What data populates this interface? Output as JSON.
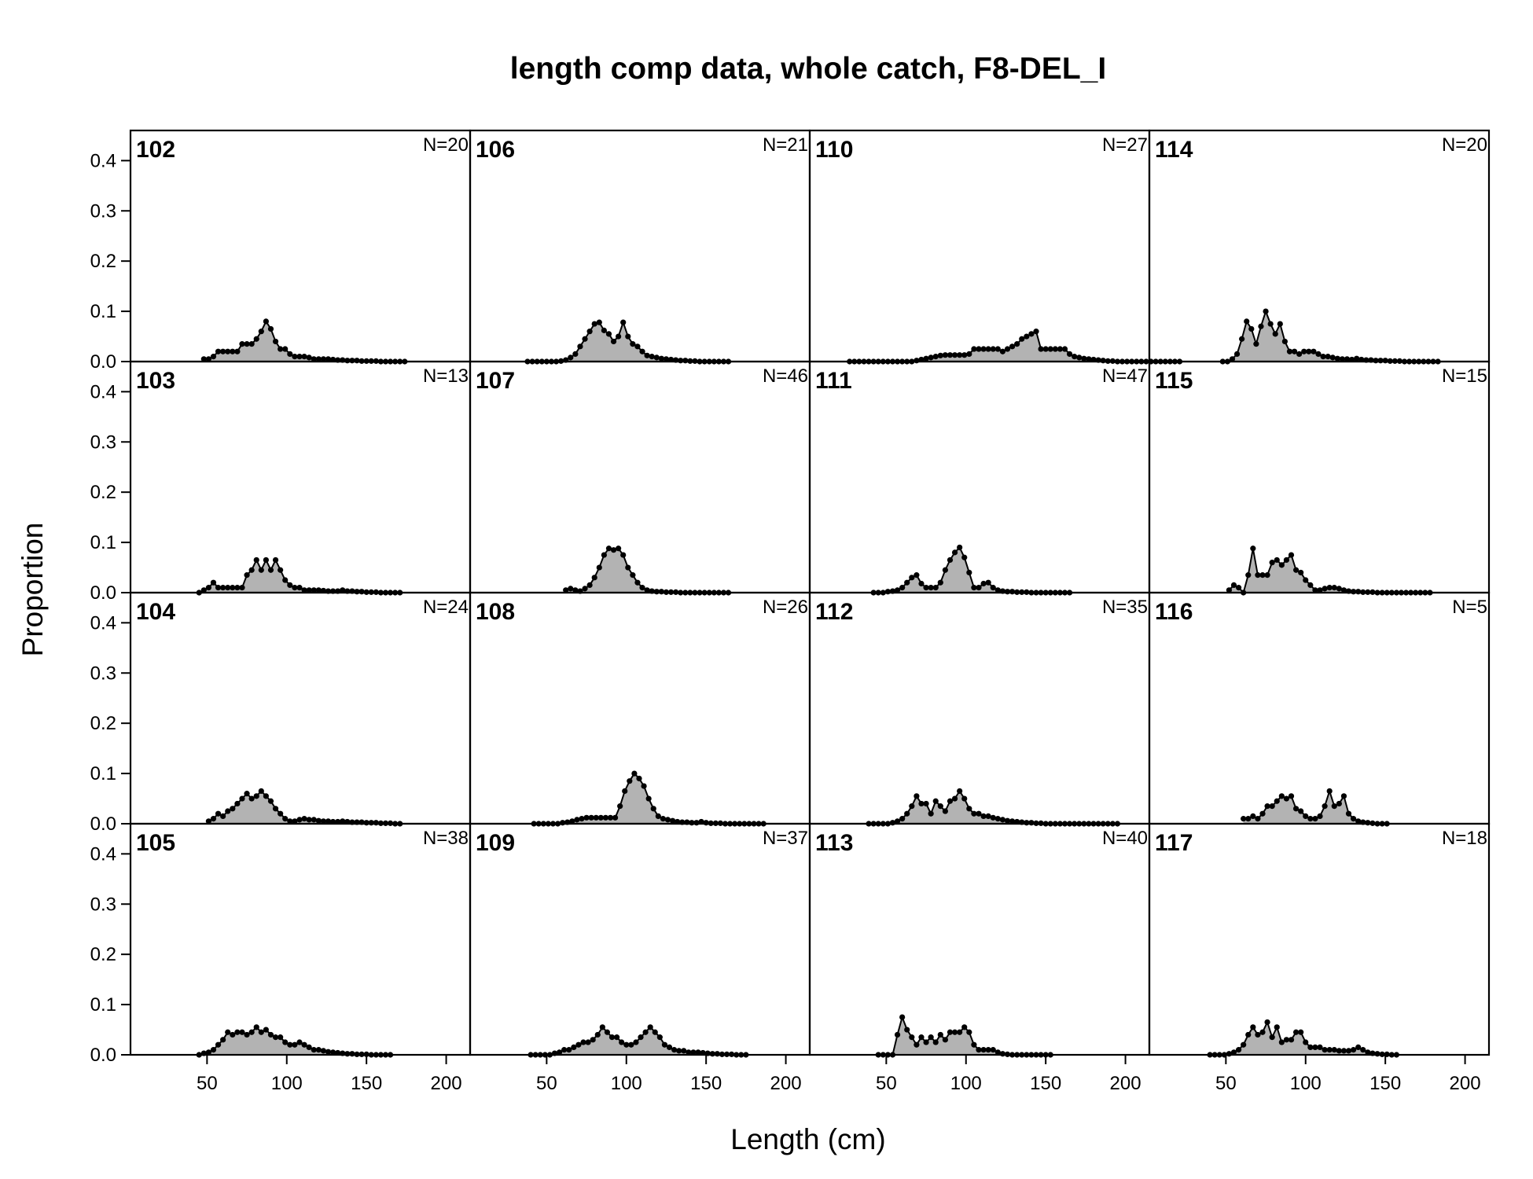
{
  "chart_data": {
    "type": "area",
    "title": "length comp data, whole catch, F8-DEL_I",
    "xlabel": "Length (cm)",
    "ylabel": "Proportion",
    "xlim": [
      2,
      215
    ],
    "ylim": [
      0,
      0.46
    ],
    "xticks": [
      50,
      100,
      150,
      200
    ],
    "yticks": [
      0.0,
      0.1,
      0.2,
      0.3,
      0.4
    ],
    "ytick_labels": [
      "0.0",
      "0.1",
      "0.2",
      "0.3",
      "0.4"
    ],
    "layout": "4 columns x 4 rows, filled by column",
    "fill_color": "#b3b3b3",
    "line_color": "#000000",
    "panels": [
      {
        "label": "102",
        "n_label": "N=20",
        "x_start": 48,
        "x_step": 3,
        "values": [
          0.005,
          0.005,
          0.01,
          0.02,
          0.02,
          0.02,
          0.02,
          0.02,
          0.035,
          0.035,
          0.035,
          0.045,
          0.06,
          0.08,
          0.065,
          0.04,
          0.025,
          0.025,
          0.015,
          0.01,
          0.01,
          0.01,
          0.008,
          0.005,
          0.005,
          0.005,
          0.005,
          0.004,
          0.003,
          0.003,
          0.002,
          0.002,
          0.002,
          0.001,
          0.001,
          0.001,
          0.001,
          0.0,
          0.0,
          0.0,
          0.0,
          0.0,
          0.0
        ]
      },
      {
        "label": "103",
        "n_label": "N=13",
        "x_start": 45,
        "x_step": 3,
        "values": [
          0.0,
          0.005,
          0.01,
          0.02,
          0.01,
          0.01,
          0.01,
          0.01,
          0.01,
          0.01,
          0.035,
          0.045,
          0.065,
          0.045,
          0.065,
          0.045,
          0.065,
          0.045,
          0.025,
          0.015,
          0.01,
          0.01,
          0.005,
          0.005,
          0.005,
          0.005,
          0.004,
          0.003,
          0.003,
          0.003,
          0.005,
          0.003,
          0.003,
          0.002,
          0.002,
          0.001,
          0.001,
          0.001,
          0.0,
          0.0,
          0.0,
          0.0,
          0.0
        ]
      },
      {
        "label": "104",
        "n_label": "N=24",
        "x_start": 51,
        "x_step": 3,
        "values": [
          0.005,
          0.01,
          0.02,
          0.015,
          0.025,
          0.03,
          0.04,
          0.05,
          0.06,
          0.05,
          0.055,
          0.065,
          0.055,
          0.045,
          0.03,
          0.02,
          0.01,
          0.005,
          0.005,
          0.008,
          0.01,
          0.008,
          0.008,
          0.006,
          0.005,
          0.005,
          0.004,
          0.004,
          0.005,
          0.004,
          0.003,
          0.003,
          0.003,
          0.002,
          0.002,
          0.002,
          0.001,
          0.001,
          0.001,
          0.0,
          0.0
        ]
      },
      {
        "label": "105",
        "n_label": "N=38",
        "x_start": 45,
        "x_step": 3,
        "values": [
          0.0,
          0.003,
          0.005,
          0.01,
          0.02,
          0.03,
          0.045,
          0.04,
          0.045,
          0.045,
          0.04,
          0.045,
          0.055,
          0.045,
          0.05,
          0.04,
          0.035,
          0.035,
          0.025,
          0.02,
          0.02,
          0.025,
          0.02,
          0.015,
          0.01,
          0.01,
          0.008,
          0.006,
          0.005,
          0.004,
          0.003,
          0.002,
          0.002,
          0.001,
          0.001,
          0.001,
          0.0,
          0.0,
          0.0,
          0.0,
          0.0
        ]
      },
      {
        "label": "106",
        "n_label": "N=21",
        "x_start": 38,
        "x_step": 3,
        "values": [
          0.0,
          0.0,
          0.0,
          0.0,
          0.0,
          0.0,
          0.0,
          0.001,
          0.003,
          0.008,
          0.015,
          0.03,
          0.045,
          0.06,
          0.075,
          0.078,
          0.062,
          0.055,
          0.04,
          0.05,
          0.078,
          0.05,
          0.035,
          0.03,
          0.02,
          0.012,
          0.01,
          0.008,
          0.006,
          0.005,
          0.004,
          0.003,
          0.002,
          0.002,
          0.001,
          0.001,
          0.0,
          0.0,
          0.0,
          0.0,
          0.0,
          0.0,
          0.0
        ]
      },
      {
        "label": "107",
        "n_label": "N=46",
        "x_start": 62,
        "x_step": 3,
        "values": [
          0.005,
          0.008,
          0.005,
          0.003,
          0.008,
          0.015,
          0.03,
          0.05,
          0.075,
          0.088,
          0.085,
          0.088,
          0.075,
          0.05,
          0.035,
          0.02,
          0.01,
          0.005,
          0.003,
          0.002,
          0.002,
          0.001,
          0.001,
          0.001,
          0.0,
          0.0,
          0.0,
          0.0,
          0.0,
          0.0,
          0.0,
          0.0,
          0.0,
          0.0,
          0.0
        ]
      },
      {
        "label": "108",
        "n_label": "N=26",
        "x_start": 42,
        "x_step": 3,
        "values": [
          0.0,
          0.0,
          0.0,
          0.0,
          0.0,
          0.0,
          0.002,
          0.003,
          0.005,
          0.008,
          0.01,
          0.012,
          0.012,
          0.012,
          0.012,
          0.012,
          0.012,
          0.012,
          0.035,
          0.065,
          0.085,
          0.1,
          0.09,
          0.075,
          0.05,
          0.03,
          0.015,
          0.01,
          0.008,
          0.006,
          0.004,
          0.003,
          0.003,
          0.002,
          0.002,
          0.004,
          0.002,
          0.001,
          0.001,
          0.001,
          0.0,
          0.0,
          0.0,
          0.0,
          0.0,
          0.0,
          0.0,
          0.0,
          0.0
        ]
      },
      {
        "label": "109",
        "n_label": "N=37",
        "x_start": 40,
        "x_step": 3,
        "values": [
          0.0,
          0.0,
          0.0,
          0.0,
          0.0,
          0.003,
          0.005,
          0.01,
          0.01,
          0.015,
          0.02,
          0.025,
          0.025,
          0.03,
          0.04,
          0.055,
          0.045,
          0.035,
          0.035,
          0.025,
          0.02,
          0.02,
          0.025,
          0.035,
          0.045,
          0.055,
          0.045,
          0.035,
          0.02,
          0.015,
          0.01,
          0.008,
          0.008,
          0.005,
          0.005,
          0.005,
          0.004,
          0.003,
          0.002,
          0.002,
          0.001,
          0.001,
          0.001,
          0.0,
          0.0,
          0.0
        ]
      },
      {
        "label": "110",
        "n_label": "N=27",
        "x_start": 27,
        "x_step": 3,
        "values": [
          0.0,
          0.0,
          0.0,
          0.0,
          0.0,
          0.0,
          0.0,
          0.0,
          0.0,
          0.0,
          0.0,
          0.0,
          0.0,
          0.0,
          0.002,
          0.004,
          0.006,
          0.008,
          0.01,
          0.012,
          0.013,
          0.013,
          0.013,
          0.013,
          0.013,
          0.015,
          0.025,
          0.025,
          0.025,
          0.025,
          0.025,
          0.025,
          0.02,
          0.025,
          0.03,
          0.035,
          0.045,
          0.05,
          0.055,
          0.06,
          0.025,
          0.025,
          0.025,
          0.025,
          0.025,
          0.025,
          0.015,
          0.01,
          0.008,
          0.006,
          0.005,
          0.004,
          0.003,
          0.002,
          0.001,
          0.001,
          0.0,
          0.0,
          0.0,
          0.0,
          0.0,
          0.0,
          0.0,
          0.0,
          0.0,
          0.0,
          0.0,
          0.0,
          0.0,
          0.0
        ]
      },
      {
        "label": "111",
        "n_label": "N=47",
        "x_start": 42,
        "x_step": 3,
        "values": [
          0.0,
          0.0,
          0.0,
          0.002,
          0.003,
          0.005,
          0.01,
          0.02,
          0.03,
          0.035,
          0.018,
          0.01,
          0.01,
          0.01,
          0.02,
          0.045,
          0.065,
          0.08,
          0.09,
          0.07,
          0.04,
          0.01,
          0.01,
          0.018,
          0.02,
          0.01,
          0.005,
          0.003,
          0.002,
          0.002,
          0.001,
          0.001,
          0.001,
          0.0,
          0.0,
          0.0,
          0.0,
          0.0,
          0.0,
          0.0,
          0.0,
          0.0
        ]
      },
      {
        "label": "112",
        "n_label": "N=35",
        "x_start": 39,
        "x_step": 3,
        "values": [
          0.0,
          0.0,
          0.0,
          0.0,
          0.0,
          0.002,
          0.005,
          0.01,
          0.02,
          0.035,
          0.055,
          0.04,
          0.04,
          0.02,
          0.045,
          0.035,
          0.025,
          0.045,
          0.05,
          0.065,
          0.05,
          0.03,
          0.02,
          0.02,
          0.015,
          0.015,
          0.012,
          0.01,
          0.008,
          0.006,
          0.005,
          0.004,
          0.003,
          0.002,
          0.002,
          0.001,
          0.001,
          0.0,
          0.0,
          0.0,
          0.0,
          0.0,
          0.0,
          0.0,
          0.0,
          0.0,
          0.0,
          0.0,
          0.0,
          0.0,
          0.0,
          0.0,
          0.0
        ]
      },
      {
        "label": "113",
        "n_label": "N=40",
        "x_start": 45,
        "x_step": 3,
        "values": [
          0.0,
          0.0,
          0.0,
          0.0,
          0.04,
          0.075,
          0.05,
          0.035,
          0.02,
          0.035,
          0.025,
          0.035,
          0.025,
          0.04,
          0.03,
          0.045,
          0.045,
          0.045,
          0.055,
          0.045,
          0.02,
          0.01,
          0.01,
          0.01,
          0.01,
          0.005,
          0.002,
          0.001,
          0.0,
          0.0,
          0.0,
          0.0,
          0.0,
          0.0,
          0.0,
          0.0,
          0.0
        ]
      },
      {
        "label": "114",
        "n_label": "N=20",
        "x_start": 48,
        "x_step": 3,
        "values": [
          0.0,
          0.0,
          0.005,
          0.015,
          0.045,
          0.08,
          0.065,
          0.035,
          0.07,
          0.1,
          0.075,
          0.055,
          0.075,
          0.04,
          0.02,
          0.02,
          0.015,
          0.02,
          0.02,
          0.02,
          0.015,
          0.01,
          0.01,
          0.008,
          0.006,
          0.005,
          0.005,
          0.004,
          0.006,
          0.004,
          0.003,
          0.003,
          0.002,
          0.002,
          0.002,
          0.001,
          0.001,
          0.001,
          0.0,
          0.0,
          0.0,
          0.0,
          0.0,
          0.0,
          0.0,
          0.0
        ]
      },
      {
        "label": "115",
        "n_label": "N=15",
        "x_start": 52,
        "x_step": 3,
        "values": [
          0.005,
          0.015,
          0.01,
          0.0,
          0.035,
          0.088,
          0.035,
          0.035,
          0.035,
          0.06,
          0.065,
          0.055,
          0.065,
          0.075,
          0.045,
          0.04,
          0.025,
          0.015,
          0.005,
          0.005,
          0.008,
          0.01,
          0.01,
          0.008,
          0.005,
          0.003,
          0.002,
          0.002,
          0.001,
          0.001,
          0.001,
          0.0,
          0.0,
          0.0,
          0.0,
          0.0,
          0.0,
          0.0,
          0.0,
          0.0,
          0.0,
          0.0,
          0.0
        ]
      },
      {
        "label": "116",
        "n_label": "N=5",
        "x_start": 61,
        "x_step": 3,
        "values": [
          0.01,
          0.01,
          0.015,
          0.01,
          0.02,
          0.035,
          0.035,
          0.045,
          0.055,
          0.05,
          0.055,
          0.03,
          0.025,
          0.015,
          0.01,
          0.01,
          0.015,
          0.035,
          0.065,
          0.035,
          0.04,
          0.055,
          0.02,
          0.01,
          0.005,
          0.003,
          0.002,
          0.001,
          0.0,
          0.0,
          0.0
        ]
      },
      {
        "label": "117",
        "n_label": "N=18",
        "x_start": 40,
        "x_step": 3,
        "values": [
          0.0,
          0.0,
          0.0,
          0.0,
          0.002,
          0.005,
          0.01,
          0.02,
          0.04,
          0.055,
          0.04,
          0.045,
          0.065,
          0.035,
          0.055,
          0.025,
          0.03,
          0.03,
          0.045,
          0.045,
          0.025,
          0.015,
          0.015,
          0.015,
          0.01,
          0.01,
          0.01,
          0.008,
          0.008,
          0.008,
          0.01,
          0.015,
          0.01,
          0.005,
          0.003,
          0.002,
          0.001,
          0.001,
          0.0,
          0.0
        ]
      }
    ]
  }
}
